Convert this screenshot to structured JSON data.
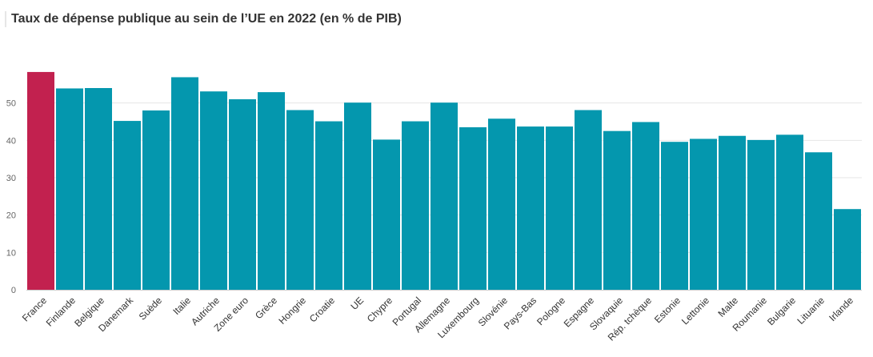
{
  "chart_data": {
    "type": "bar",
    "title": "Taux de dépense publique au sein de l’UE en 2022 (en % de PIB)",
    "xlabel": "",
    "ylabel": "",
    "ylim": [
      0,
      60
    ],
    "yticks": [
      0,
      10,
      20,
      30,
      40,
      50
    ],
    "grid": true,
    "categories": [
      "France",
      "Finlande",
      "Belgique",
      "Danemark",
      "Suède",
      "Italie",
      "Autriche",
      "Zone euro",
      "Grèce",
      "Hongrie",
      "Croatie",
      "UE",
      "Chypre",
      "Portugal",
      "Allemagne",
      "Luxembourg",
      "Slovénie",
      "Pays-Bas",
      "Pologne",
      "Espagne",
      "Slovaquie",
      "Rép. tchèque",
      "Estonie",
      "Lettonie",
      "Malte",
      "Roumanie",
      "Bulgarie",
      "Lituanie",
      "Irlande"
    ],
    "values": [
      58.3,
      53.9,
      54.0,
      45.2,
      48.0,
      56.9,
      53.1,
      51.0,
      52.9,
      48.1,
      45.1,
      50.1,
      40.2,
      45.1,
      50.1,
      43.5,
      45.8,
      43.7,
      43.7,
      48.1,
      42.5,
      44.9,
      39.6,
      40.4,
      41.2,
      40.1,
      41.5,
      36.8,
      21.6
    ],
    "colors": {
      "highlight": "#c2214f",
      "default": "#0497ae",
      "grid": "#e6e6e6",
      "axis": "#cccccc"
    },
    "highlight_category": "France"
  }
}
